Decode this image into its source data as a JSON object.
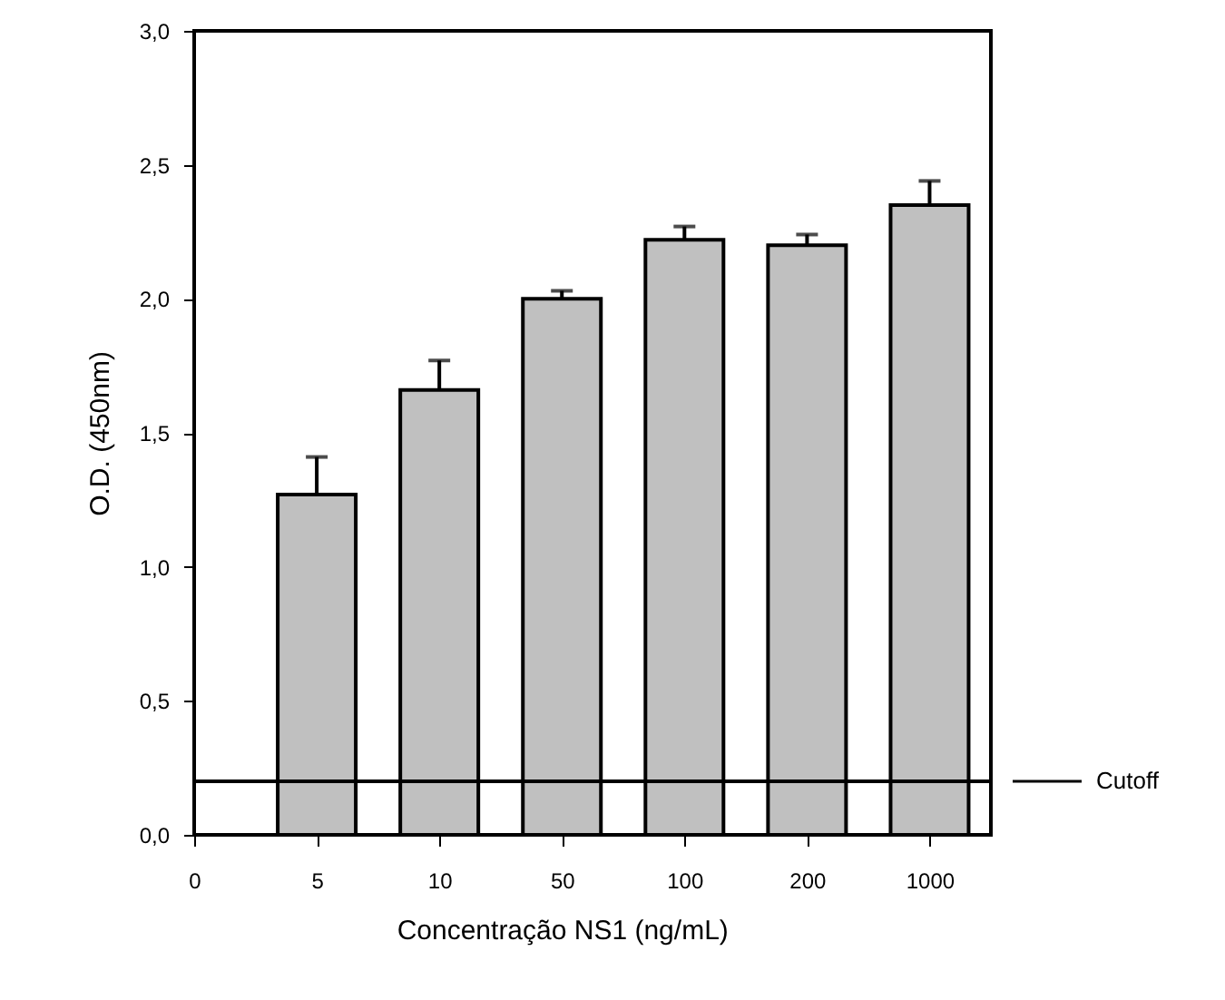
{
  "chart_data": {
    "type": "bar",
    "xlabel": "Concentração NS1 (ng/mL)",
    "ylabel": "O.D. (450nm)",
    "categories": [
      "0",
      "5",
      "10",
      "50",
      "100",
      "200",
      "1000"
    ],
    "values": [
      null,
      1.27,
      1.66,
      2.0,
      2.22,
      2.2,
      2.35
    ],
    "errors": [
      null,
      [
        1.27,
        1.41
      ],
      [
        1.66,
        1.77
      ],
      [
        2.0,
        2.03
      ],
      [
        2.22,
        2.27
      ],
      [
        2.2,
        2.24
      ],
      [
        2.35,
        2.44
      ]
    ],
    "color": "#c0c0c0",
    "ylim": [
      0,
      3
    ],
    "yticks": [
      {
        "value": 0,
        "label": "0,0"
      },
      {
        "value": 0.5,
        "label": "0,5"
      },
      {
        "value": 1,
        "label": "1,0"
      },
      {
        "value": 1.5,
        "label": "1,5"
      },
      {
        "value": 2,
        "label": "2,0"
      },
      {
        "value": 2.5,
        "label": "2,5"
      },
      {
        "value": 3,
        "label": "3,0"
      }
    ],
    "ref_lines": [
      {
        "axis": "y",
        "value": 0.2,
        "label": "Cutoff",
        "color": "#000000"
      }
    ],
    "grid": false
  }
}
